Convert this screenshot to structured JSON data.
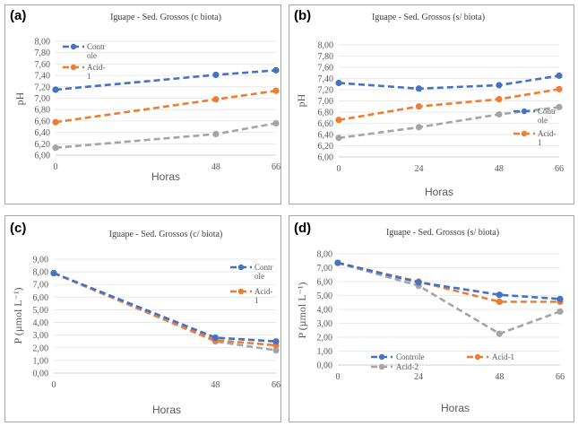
{
  "chart_data": [
    {
      "id": "a",
      "type": "line",
      "panel_label": "(a)",
      "title": "Iguape - Sed. Grossos (c biota)",
      "xlabel": "Horas",
      "ylabel": "pH",
      "x": [
        0,
        48,
        66
      ],
      "x_ticks": [
        "0",
        "48",
        "66"
      ],
      "ylim": [
        6.0,
        8.0
      ],
      "y_ticks": [
        "6,00",
        "6,20",
        "6,40",
        "6,60",
        "6,80",
        "7,00",
        "7,20",
        "7,40",
        "7,60",
        "7,80",
        "8,00"
      ],
      "legend": {
        "placement": "top-left"
      },
      "series": [
        {
          "name": "Controle",
          "legend_label": [
            "Contr",
            "ole"
          ],
          "color": "#4472c4",
          "values": [
            7.15,
            7.41,
            7.49
          ]
        },
        {
          "name": "Acid-1",
          "legend_label": [
            "Acid-",
            "1"
          ],
          "color": "#ed7d31",
          "values": [
            6.58,
            6.98,
            7.13
          ]
        },
        {
          "color": "#a5a5a5",
          "values": [
            6.13,
            6.37,
            6.56
          ]
        }
      ]
    },
    {
      "id": "b",
      "type": "line",
      "panel_label": "(b)",
      "title": "Iguape - Sed. Grossos (s/ biota)",
      "xlabel": "Horas",
      "ylabel": "pH",
      "x": [
        0,
        24,
        48,
        66
      ],
      "x_ticks": [
        "0",
        "24",
        "48",
        "66"
      ],
      "ylim": [
        6.0,
        8.0
      ],
      "y_ticks": [
        "6,00",
        "6,20",
        "6,40",
        "6,60",
        "6,80",
        "7,00",
        "7,20",
        "7,40",
        "7,60",
        "7,80",
        "8,00"
      ],
      "legend": {
        "placement": "right"
      },
      "series": [
        {
          "name": "Controle",
          "legend_label": [
            "Contr",
            "ole"
          ],
          "color": "#4472c4",
          "values": [
            7.32,
            7.22,
            7.28,
            7.45
          ]
        },
        {
          "name": "Acid-1",
          "legend_label": [
            "Acid-",
            "1"
          ],
          "color": "#ed7d31",
          "values": [
            6.66,
            6.9,
            7.03,
            7.21
          ]
        },
        {
          "color": "#a5a5a5",
          "values": [
            6.34,
            6.53,
            6.76,
            6.89
          ]
        }
      ]
    },
    {
      "id": "c",
      "type": "line",
      "panel_label": "(c)",
      "title": "Iguape - Sed. Grossos (c/ biota)",
      "xlabel": "Horas",
      "ylabel": "P (µmol L⁻¹)",
      "x": [
        0,
        48,
        66
      ],
      "x_ticks": [
        "0",
        "48",
        "66"
      ],
      "ylim": [
        0,
        9
      ],
      "y_ticks": [
        "0,00",
        "1,00",
        "2,00",
        "3,00",
        "4,00",
        "5,00",
        "6,00",
        "7,00",
        "8,00",
        "9,00"
      ],
      "legend": {
        "placement": "right"
      },
      "series": [
        {
          "name": "Controle",
          "legend_label": [
            "Contr",
            "ole"
          ],
          "color": "#4472c4",
          "values": [
            7.9,
            2.8,
            2.5
          ]
        },
        {
          "name": "Acid-1",
          "legend_label": [
            "Acid-",
            "1"
          ],
          "color": "#ed7d31",
          "values": [
            7.9,
            2.6,
            2.2
          ]
        },
        {
          "color": "#a5a5a5",
          "values": [
            7.9,
            2.5,
            1.8
          ]
        }
      ]
    },
    {
      "id": "d",
      "type": "line",
      "panel_label": "(d)",
      "title": "Iguape - Sed. Grossos (s/ biota)",
      "xlabel": "Horas",
      "ylabel": "P (µmol L⁻¹)",
      "x": [
        0,
        24,
        48,
        66
      ],
      "x_ticks": [
        "0",
        "24",
        "48",
        "66"
      ],
      "ylim": [
        0,
        8
      ],
      "y_ticks": [
        "0,00",
        "1,00",
        "2,00",
        "3,00",
        "4,00",
        "5,00",
        "6,00",
        "7,00",
        "8,00"
      ],
      "legend": {
        "placement": "bottom"
      },
      "series": [
        {
          "name": "Controle",
          "legend_label": [
            "Controle"
          ],
          "color": "#4472c4",
          "values": [
            7.35,
            5.95,
            5.05,
            4.75
          ]
        },
        {
          "name": "Acid-1",
          "legend_label": [
            "Acid-1"
          ],
          "color": "#ed7d31",
          "values": [
            7.35,
            6.0,
            4.55,
            4.55
          ]
        },
        {
          "name": "Acid-2",
          "legend_label": [
            "Acid-2"
          ],
          "color": "#a5a5a5",
          "values": [
            7.35,
            5.7,
            2.25,
            3.85
          ]
        }
      ]
    }
  ]
}
